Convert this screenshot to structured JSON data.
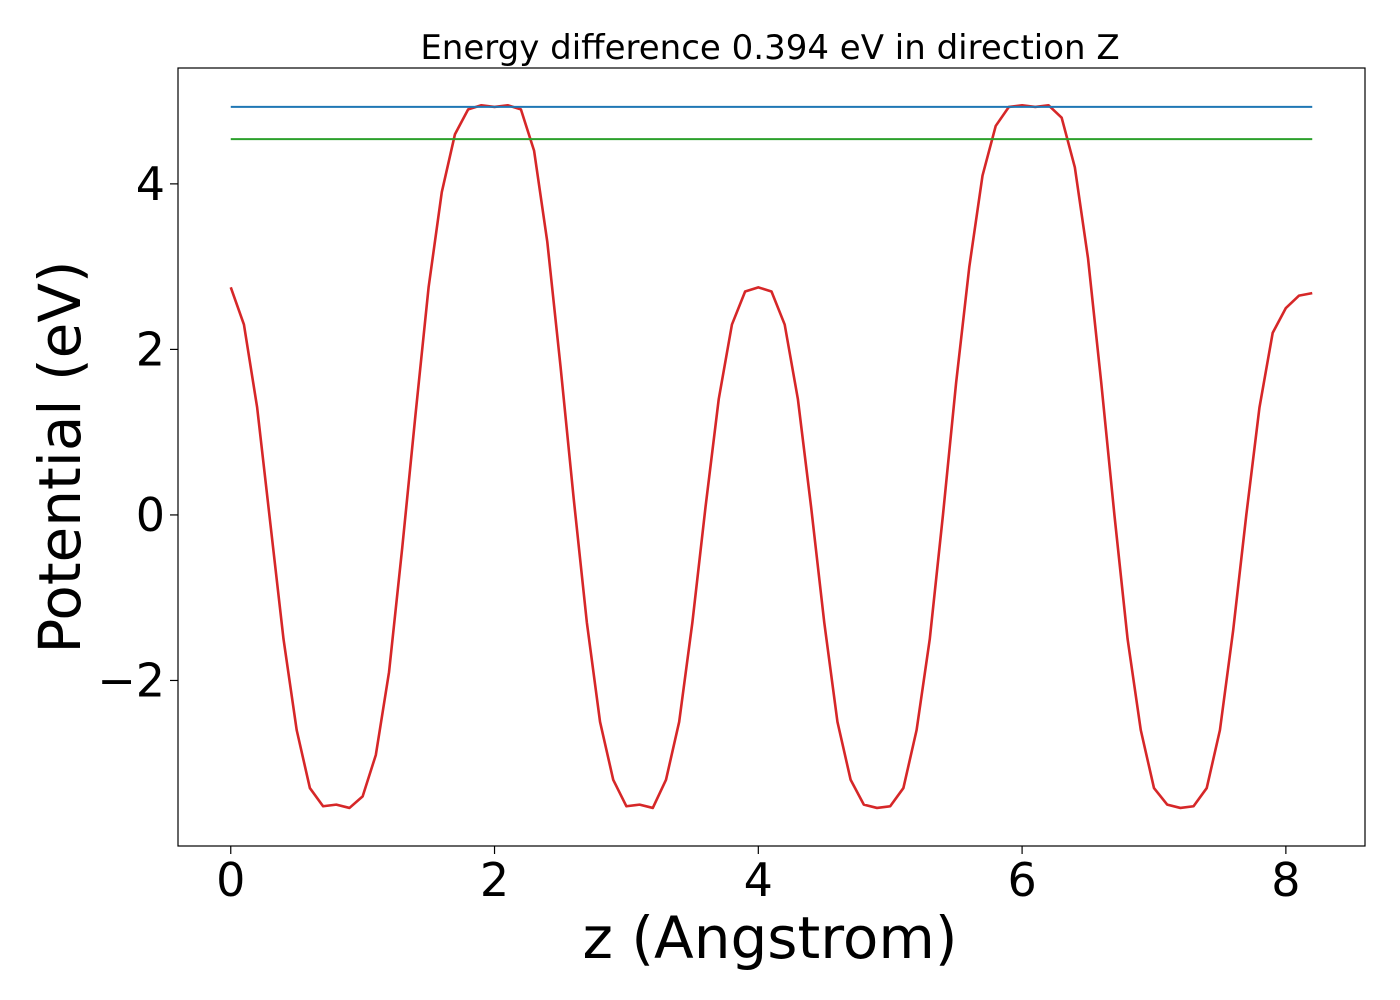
{
  "chart_data": {
    "type": "line",
    "title": "Energy difference 0.394 eV in direction Z",
    "xlabel": "z (Angstrom)",
    "ylabel": "Potential (eV)",
    "xlim": [
      -0.4,
      8.6
    ],
    "ylim": [
      -4.0,
      5.4
    ],
    "xticks": [
      0,
      2,
      4,
      6,
      8
    ],
    "xtick_labels": [
      "0",
      "2",
      "4",
      "6",
      "8"
    ],
    "yticks": [
      -2,
      0,
      2,
      4
    ],
    "ytick_labels": [
      "−2",
      "0",
      "2",
      "4"
    ],
    "grid": false,
    "legend": "none",
    "series": [
      {
        "color": "#d62728",
        "x": [
          0.0,
          0.1,
          0.2,
          0.3,
          0.4,
          0.5,
          0.6,
          0.7,
          0.8,
          0.9,
          1.0,
          1.1,
          1.2,
          1.3,
          1.4,
          1.5,
          1.6,
          1.7,
          1.8,
          1.9,
          2.0,
          2.1,
          2.2,
          2.3,
          2.4,
          2.5,
          2.6,
          2.7,
          2.8,
          2.9,
          3.0,
          3.1,
          3.2,
          3.3,
          3.4,
          3.5,
          3.6,
          3.7,
          3.8,
          3.9,
          4.0,
          4.1,
          4.2,
          4.3,
          4.4,
          4.5,
          4.6,
          4.7,
          4.8,
          4.9,
          5.0,
          5.1,
          5.2,
          5.3,
          5.4,
          5.5,
          5.6,
          5.7,
          5.8,
          5.9,
          6.0,
          6.1,
          6.2,
          6.3,
          6.4,
          6.5,
          6.6,
          6.7,
          6.8,
          6.9,
          7.0,
          7.1,
          7.2,
          7.3,
          7.4,
          7.5,
          7.6,
          7.7,
          7.8,
          7.9,
          8.0,
          8.1,
          8.2
        ],
        "y": [
          2.75,
          2.3,
          1.3,
          -0.1,
          -1.5,
          -2.6,
          -3.3,
          -3.52,
          -3.5,
          -3.54,
          -3.4,
          -2.9,
          -1.9,
          -0.4,
          1.2,
          2.75,
          3.9,
          4.6,
          4.9,
          4.95,
          4.93,
          4.95,
          4.9,
          4.4,
          3.3,
          1.8,
          0.2,
          -1.3,
          -2.5,
          -3.2,
          -3.52,
          -3.5,
          -3.54,
          -3.2,
          -2.5,
          -1.3,
          0.1,
          1.4,
          2.3,
          2.7,
          2.75,
          2.7,
          2.3,
          1.4,
          0.1,
          -1.3,
          -2.5,
          -3.2,
          -3.5,
          -3.54,
          -3.52,
          -3.3,
          -2.6,
          -1.5,
          0.0,
          1.6,
          3.0,
          4.1,
          4.7,
          4.93,
          4.95,
          4.93,
          4.95,
          4.8,
          4.2,
          3.1,
          1.6,
          0.0,
          -1.5,
          -2.6,
          -3.3,
          -3.5,
          -3.54,
          -3.52,
          -3.3,
          -2.6,
          -1.4,
          0.0,
          1.3,
          2.2,
          2.5,
          2.65,
          2.68
        ]
      },
      {
        "color": "#1f77b4",
        "x": [
          0.0,
          8.2
        ],
        "y": [
          4.93,
          4.93
        ]
      },
      {
        "color": "#2ca02c",
        "x": [
          0.0,
          8.2
        ],
        "y": [
          4.54,
          4.54
        ]
      }
    ]
  }
}
